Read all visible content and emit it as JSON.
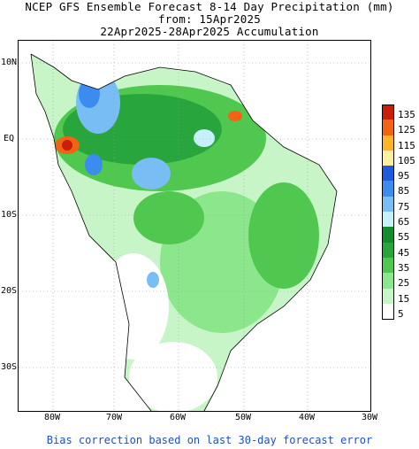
{
  "header": {
    "line1": "NCEP GFS Ensemble Forecast 8-14 Day Precipitation (mm)",
    "line2": "from: 15Apr2025",
    "line3": "22Apr2025-28Apr2025 Accumulation"
  },
  "axes": {
    "lat_labels": [
      "10N",
      "EQ",
      "10S",
      "20S",
      "30S"
    ],
    "lon_labels": [
      "80W",
      "70W",
      "60W",
      "50W",
      "40W",
      "30W"
    ]
  },
  "legend": {
    "items": [
      {
        "label": "135",
        "color": "#c81e0a"
      },
      {
        "label": "125",
        "color": "#f06414"
      },
      {
        "label": "115",
        "color": "#ffb428"
      },
      {
        "label": "105",
        "color": "#fff0a0"
      },
      {
        "label": "95",
        "color": "#1e5adc"
      },
      {
        "label": "85",
        "color": "#3c8cf0"
      },
      {
        "label": "75",
        "color": "#78bef5"
      },
      {
        "label": "65",
        "color": "#c8f0fa"
      },
      {
        "label": "55",
        "color": "#148c2d"
      },
      {
        "label": "45",
        "color": "#28a53c"
      },
      {
        "label": "35",
        "color": "#50c850"
      },
      {
        "label": "25",
        "color": "#8ce68c"
      },
      {
        "label": "15",
        "color": "#c8f5c8"
      },
      {
        "label": "5",
        "color": "#ffffff"
      }
    ]
  },
  "footer": "Bias correction based on last 30-day forecast error"
}
